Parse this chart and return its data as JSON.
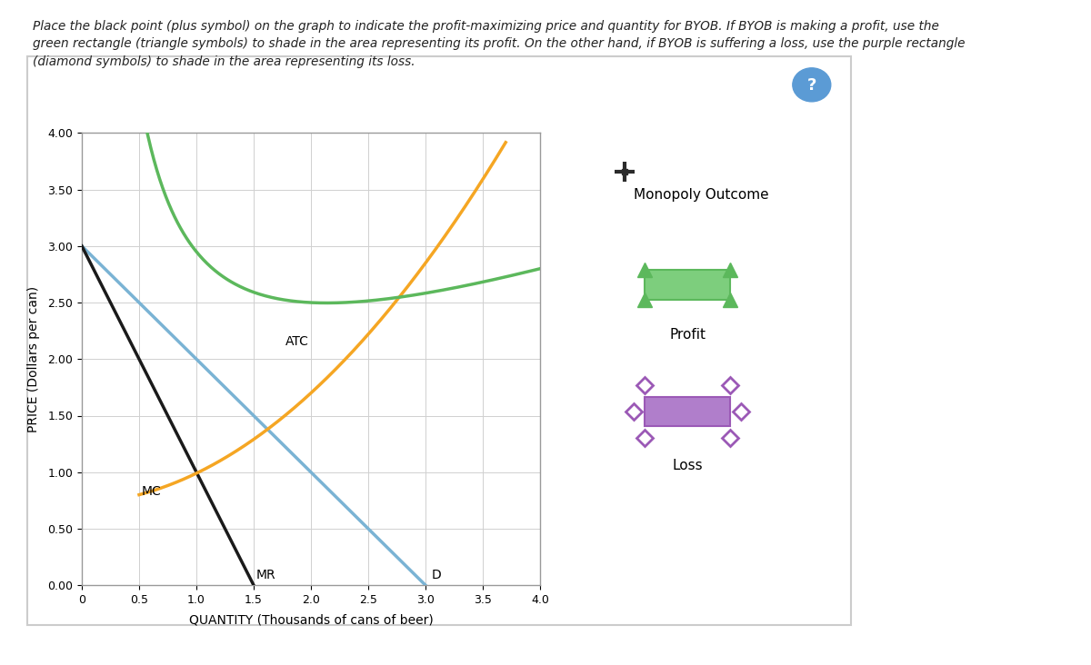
{
  "title_line1": "Place the black point (plus symbol) on the graph to indicate the profit-maximizing price and quantity for BYOB. If BYOB is making a profit, use the",
  "title_line2": "green rectangle (triangle symbols) to shade in the area representing its profit. On the other hand, if BYOB is suffering a loss, use the purple rectangle",
  "title_line3": "(diamond symbols) to shade in the area representing its loss.",
  "xlabel": "QUANTITY (Thousands of cans of beer)",
  "ylabel": "PRICE (Dollars per can)",
  "xlim": [
    0,
    4.0
  ],
  "ylim": [
    0,
    4.0
  ],
  "xticks": [
    0,
    0.5,
    1.0,
    1.5,
    2.0,
    2.5,
    3.0,
    3.5,
    4.0
  ],
  "yticks": [
    0,
    0.5,
    1.0,
    1.5,
    2.0,
    2.5,
    3.0,
    3.5,
    4.0
  ],
  "demand_color": "#7ab3d4",
  "mr_color": "#1a1a1a",
  "mc_color": "#f5a623",
  "atc_color": "#5cb85c",
  "legend_plus_color": "#2b2b2b",
  "legend_triangle_color": "#5cb85c",
  "legend_diamond_color": "#9b59b6",
  "profit_fill_color": "#7dce7d",
  "loss_fill_color": "#b07ecb",
  "bg_color": "#ffffff",
  "grid_color": "#d0d0d0",
  "border_color": "#cccccc",
  "question_circle_color": "#5b9bd5"
}
